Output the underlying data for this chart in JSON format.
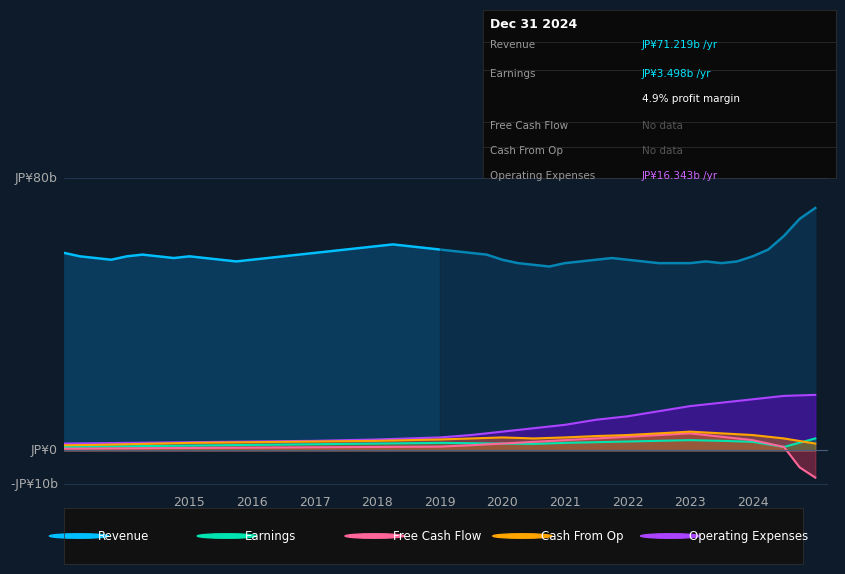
{
  "background_color": "#0d1b2a",
  "plot_bg_color": "#0d1b2a",
  "title_box": {
    "date": "Dec 31 2024",
    "rows": [
      {
        "label": "Revenue",
        "value": "JP¥71.219b /yr",
        "value_color": "#00e5ff"
      },
      {
        "label": "Earnings",
        "value": "JP¥3.498b /yr",
        "value_color": "#00e5ff"
      },
      {
        "label": "",
        "value": "4.9% profit margin",
        "value_color": "#ffffff"
      },
      {
        "label": "Free Cash Flow",
        "value": "No data",
        "value_color": "#666666"
      },
      {
        "label": "Cash From Op",
        "value": "No data",
        "value_color": "#666666"
      },
      {
        "label": "Operating Expenses",
        "value": "JP¥16.343b /yr",
        "value_color": "#cc66ff"
      }
    ]
  },
  "y_label_top": "JP¥80b",
  "y_label_zero": "JP¥0",
  "y_label_bottom": "-JP¥10b",
  "x_ticks": [
    2015,
    2016,
    2017,
    2018,
    2019,
    2020,
    2021,
    2022,
    2023,
    2024
  ],
  "legend": [
    {
      "label": "Revenue",
      "color": "#00bfff"
    },
    {
      "label": "Earnings",
      "color": "#00e5b0"
    },
    {
      "label": "Free Cash Flow",
      "color": "#ff6699"
    },
    {
      "label": "Cash From Op",
      "color": "#ffa500"
    },
    {
      "label": "Operating Expenses",
      "color": "#aa44ff"
    }
  ],
  "revenue": {
    "x": [
      2013.0,
      2013.25,
      2013.5,
      2013.75,
      2014.0,
      2014.25,
      2014.5,
      2014.75,
      2015.0,
      2015.25,
      2015.5,
      2015.75,
      2016.0,
      2016.25,
      2016.5,
      2016.75,
      2017.0,
      2017.25,
      2017.5,
      2017.75,
      2018.0,
      2018.25,
      2018.5,
      2018.75,
      2019.0,
      2019.25,
      2019.5,
      2019.75,
      2020.0,
      2020.25,
      2020.5,
      2020.75,
      2021.0,
      2021.25,
      2021.5,
      2021.75,
      2022.0,
      2022.25,
      2022.5,
      2022.75,
      2023.0,
      2023.25,
      2023.5,
      2023.75,
      2024.0,
      2024.25,
      2024.5,
      2024.75,
      2025.0
    ],
    "y": [
      58,
      57,
      56.5,
      56,
      57,
      57.5,
      57,
      56.5,
      57,
      56.5,
      56,
      55.5,
      56,
      56.5,
      57,
      57.5,
      58,
      58.5,
      59,
      59.5,
      60,
      60.5,
      60,
      59.5,
      59,
      58.5,
      58,
      57.5,
      56,
      55,
      54.5,
      54,
      55,
      55.5,
      56,
      56.5,
      56,
      55.5,
      55,
      55,
      55,
      55.5,
      55,
      55.5,
      57,
      59,
      63,
      68,
      71.2
    ]
  },
  "earnings": {
    "x": [
      2013.0,
      2013.5,
      2014.0,
      2014.5,
      2015.0,
      2015.5,
      2016.0,
      2016.5,
      2017.0,
      2017.5,
      2018.0,
      2018.5,
      2019.0,
      2019.5,
      2020.0,
      2020.5,
      2021.0,
      2021.5,
      2022.0,
      2022.5,
      2023.0,
      2023.5,
      2024.0,
      2024.5,
      2025.0
    ],
    "y": [
      1.0,
      1.1,
      1.2,
      1.3,
      1.4,
      1.5,
      1.6,
      1.7,
      1.8,
      1.9,
      2.0,
      2.1,
      2.2,
      2.1,
      2.0,
      1.9,
      2.2,
      2.4,
      2.6,
      2.8,
      3.0,
      2.8,
      2.5,
      1.0,
      3.5
    ]
  },
  "free_cash_flow": {
    "x": [
      2013.0,
      2014.0,
      2015.0,
      2016.0,
      2017.0,
      2018.0,
      2019.0,
      2019.5,
      2020.0,
      2020.5,
      2021.0,
      2021.5,
      2022.0,
      2022.5,
      2023.0,
      2023.5,
      2024.0,
      2024.5,
      2024.75,
      2025.0
    ],
    "y": [
      0.5,
      0.6,
      0.7,
      0.8,
      0.9,
      1.0,
      1.1,
      1.5,
      2.0,
      2.5,
      3.0,
      3.5,
      4.0,
      4.5,
      5.0,
      4.0,
      3.0,
      1.0,
      -5.0,
      -8.0
    ]
  },
  "cash_from_op": {
    "x": [
      2013.0,
      2013.5,
      2014.0,
      2014.5,
      2015.0,
      2015.5,
      2016.0,
      2016.5,
      2017.0,
      2017.5,
      2018.0,
      2018.5,
      2019.0,
      2019.5,
      2020.0,
      2020.5,
      2021.0,
      2021.5,
      2022.0,
      2022.5,
      2023.0,
      2023.5,
      2024.0,
      2024.5,
      2025.0
    ],
    "y": [
      1.5,
      1.6,
      1.8,
      2.0,
      2.2,
      2.3,
      2.4,
      2.5,
      2.6,
      2.7,
      2.8,
      3.0,
      3.2,
      3.5,
      3.8,
      3.5,
      3.8,
      4.2,
      4.5,
      5.0,
      5.5,
      5.0,
      4.5,
      3.5,
      2.0
    ]
  },
  "operating_expenses": {
    "x": [
      2013.0,
      2013.5,
      2014.0,
      2014.5,
      2015.0,
      2015.5,
      2016.0,
      2016.5,
      2017.0,
      2017.5,
      2018.0,
      2018.5,
      2019.0,
      2019.5,
      2020.0,
      2020.5,
      2021.0,
      2021.5,
      2022.0,
      2022.5,
      2023.0,
      2023.5,
      2024.0,
      2024.5,
      2025.0
    ],
    "y": [
      2.0,
      2.1,
      2.2,
      2.3,
      2.4,
      2.5,
      2.6,
      2.7,
      2.8,
      3.0,
      3.2,
      3.5,
      3.8,
      4.5,
      5.5,
      6.5,
      7.5,
      9.0,
      10.0,
      11.5,
      13.0,
      14.0,
      15.0,
      16.0,
      16.3
    ]
  },
  "ylim": [
    -12,
    90
  ],
  "xlim": [
    2013.0,
    2025.2
  ],
  "zero_line_y": 0,
  "highlight_x_start": 2019.0,
  "highlight_x_end": 2025.2
}
